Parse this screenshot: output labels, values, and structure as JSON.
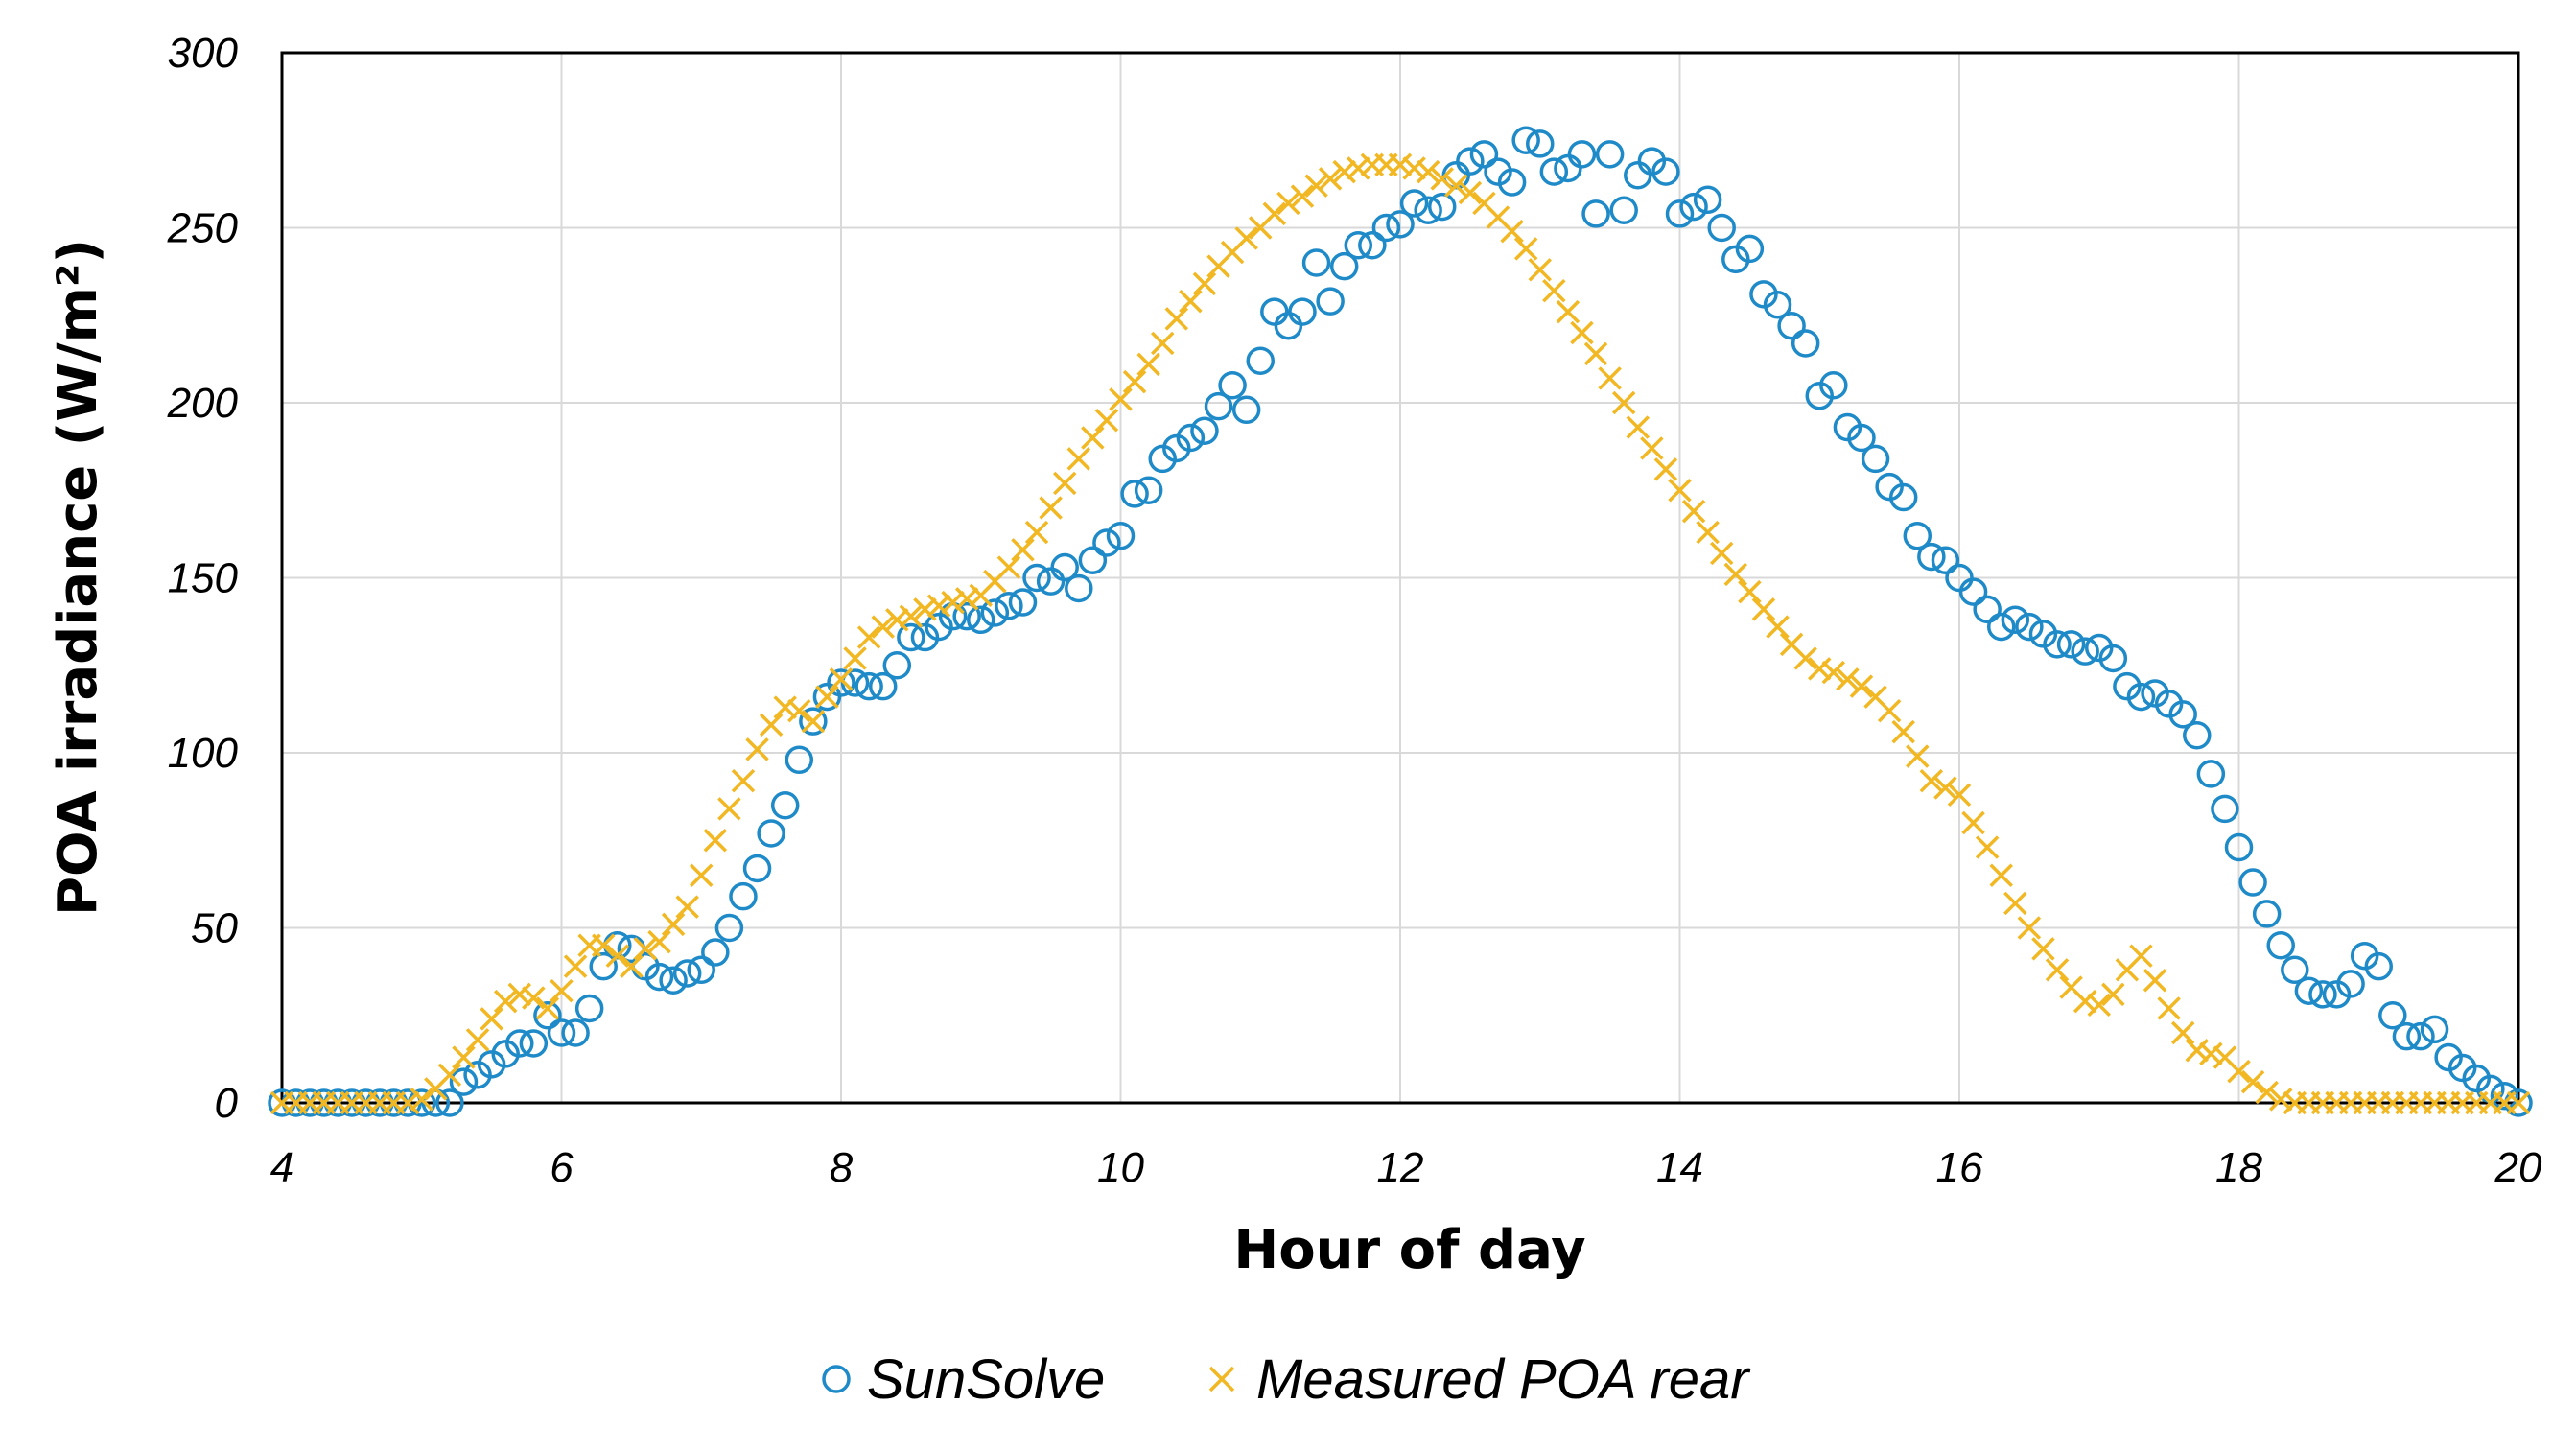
{
  "chart_data": {
    "type": "scatter",
    "xlabel": "Hour of day",
    "ylabel": "POA irradiance (W/m²)",
    "xlim": [
      4,
      20
    ],
    "ylim": [
      0,
      300
    ],
    "x_ticks": [
      4,
      6,
      8,
      10,
      12,
      14,
      16,
      18,
      20
    ],
    "y_ticks": [
      0,
      50,
      100,
      150,
      200,
      250,
      300
    ],
    "grid": true,
    "legend_position": "bottom",
    "series": [
      {
        "name": "SunSolve",
        "marker": "circle",
        "color": "#1f8ac8",
        "points": [
          [
            4.0,
            0
          ],
          [
            4.1,
            0
          ],
          [
            4.2,
            0
          ],
          [
            4.3,
            0
          ],
          [
            4.4,
            0
          ],
          [
            4.5,
            0
          ],
          [
            4.6,
            0
          ],
          [
            4.7,
            0
          ],
          [
            4.8,
            0
          ],
          [
            4.9,
            0
          ],
          [
            5.0,
            0
          ],
          [
            5.1,
            0
          ],
          [
            5.2,
            0
          ],
          [
            5.3,
            6
          ],
          [
            5.4,
            8
          ],
          [
            5.5,
            11
          ],
          [
            5.6,
            14
          ],
          [
            5.7,
            17
          ],
          [
            5.8,
            17
          ],
          [
            5.9,
            25
          ],
          [
            6.0,
            20
          ],
          [
            6.1,
            20
          ],
          [
            6.2,
            27
          ],
          [
            6.3,
            39
          ],
          [
            6.4,
            45
          ],
          [
            6.5,
            44
          ],
          [
            6.6,
            39
          ],
          [
            6.7,
            36
          ],
          [
            6.8,
            35
          ],
          [
            6.9,
            37
          ],
          [
            7.0,
            38
          ],
          [
            7.1,
            43
          ],
          [
            7.2,
            50
          ],
          [
            7.3,
            59
          ],
          [
            7.4,
            67
          ],
          [
            7.5,
            77
          ],
          [
            7.6,
            85
          ],
          [
            7.7,
            98
          ],
          [
            7.8,
            109
          ],
          [
            7.9,
            116
          ],
          [
            8.0,
            120
          ],
          [
            8.1,
            120
          ],
          [
            8.2,
            119
          ],
          [
            8.3,
            119
          ],
          [
            8.4,
            125
          ],
          [
            8.5,
            133
          ],
          [
            8.6,
            133
          ],
          [
            8.7,
            136
          ],
          [
            8.8,
            139
          ],
          [
            8.9,
            139
          ],
          [
            9.0,
            138
          ],
          [
            9.1,
            140
          ],
          [
            9.2,
            142
          ],
          [
            9.3,
            143
          ],
          [
            9.4,
            150
          ],
          [
            9.5,
            149
          ],
          [
            9.6,
            153
          ],
          [
            9.7,
            147
          ],
          [
            9.8,
            155
          ],
          [
            9.9,
            160
          ],
          [
            10.0,
            162
          ],
          [
            10.1,
            174
          ],
          [
            10.2,
            175
          ],
          [
            10.3,
            184
          ],
          [
            10.4,
            187
          ],
          [
            10.5,
            190
          ],
          [
            10.6,
            192
          ],
          [
            10.7,
            199
          ],
          [
            10.8,
            205
          ],
          [
            10.9,
            198
          ],
          [
            11.0,
            212
          ],
          [
            11.1,
            226
          ],
          [
            11.2,
            222
          ],
          [
            11.3,
            226
          ],
          [
            11.4,
            240
          ],
          [
            11.5,
            229
          ],
          [
            11.6,
            239
          ],
          [
            11.7,
            245
          ],
          [
            11.8,
            245
          ],
          [
            11.9,
            250
          ],
          [
            12.0,
            251
          ],
          [
            12.1,
            257
          ],
          [
            12.2,
            255
          ],
          [
            12.3,
            256
          ],
          [
            12.4,
            265
          ],
          [
            12.5,
            269
          ],
          [
            12.6,
            271
          ],
          [
            12.7,
            266
          ],
          [
            12.8,
            263
          ],
          [
            12.9,
            275
          ],
          [
            13.0,
            274
          ],
          [
            13.1,
            266
          ],
          [
            13.2,
            267
          ],
          [
            13.3,
            271
          ],
          [
            13.4,
            254
          ],
          [
            13.5,
            271
          ],
          [
            13.6,
            255
          ],
          [
            13.7,
            265
          ],
          [
            13.8,
            269
          ],
          [
            13.9,
            266
          ],
          [
            14.0,
            254
          ],
          [
            14.1,
            256
          ],
          [
            14.2,
            258
          ],
          [
            14.3,
            250
          ],
          [
            14.4,
            241
          ],
          [
            14.5,
            244
          ],
          [
            14.6,
            231
          ],
          [
            14.7,
            228
          ],
          [
            14.8,
            222
          ],
          [
            14.9,
            217
          ],
          [
            15.0,
            202
          ],
          [
            15.1,
            205
          ],
          [
            15.2,
            193
          ],
          [
            15.3,
            190
          ],
          [
            15.4,
            184
          ],
          [
            15.5,
            176
          ],
          [
            15.6,
            173
          ],
          [
            15.7,
            162
          ],
          [
            15.8,
            156
          ],
          [
            15.9,
            155
          ],
          [
            16.0,
            150
          ],
          [
            16.1,
            146
          ],
          [
            16.2,
            141
          ],
          [
            16.3,
            136
          ],
          [
            16.4,
            138
          ],
          [
            16.5,
            136
          ],
          [
            16.6,
            134
          ],
          [
            16.7,
            131
          ],
          [
            16.8,
            131
          ],
          [
            16.9,
            129
          ],
          [
            17.0,
            130
          ],
          [
            17.1,
            127
          ],
          [
            17.2,
            119
          ],
          [
            17.3,
            116
          ],
          [
            17.4,
            117
          ],
          [
            17.5,
            114
          ],
          [
            17.6,
            111
          ],
          [
            17.7,
            105
          ],
          [
            17.8,
            94
          ],
          [
            17.9,
            84
          ],
          [
            18.0,
            73
          ],
          [
            18.1,
            63
          ],
          [
            18.2,
            54
          ],
          [
            18.3,
            45
          ],
          [
            18.4,
            38
          ],
          [
            18.5,
            32
          ],
          [
            18.6,
            31
          ],
          [
            18.7,
            31
          ],
          [
            18.8,
            34
          ],
          [
            18.9,
            42
          ],
          [
            19.0,
            39
          ],
          [
            19.1,
            25
          ],
          [
            19.2,
            19
          ],
          [
            19.3,
            19
          ],
          [
            19.4,
            21
          ],
          [
            19.5,
            13
          ],
          [
            19.6,
            10
          ],
          [
            19.7,
            7
          ],
          [
            19.8,
            4
          ],
          [
            19.9,
            2
          ],
          [
            20.0,
            0
          ]
        ]
      },
      {
        "name": "Measured POA rear",
        "marker": "x",
        "color": "#f2b824",
        "points": [
          [
            4.0,
            0
          ],
          [
            4.1,
            0
          ],
          [
            4.2,
            0
          ],
          [
            4.3,
            0
          ],
          [
            4.4,
            0
          ],
          [
            4.5,
            0
          ],
          [
            4.6,
            0
          ],
          [
            4.7,
            0
          ],
          [
            4.8,
            0
          ],
          [
            4.9,
            0
          ],
          [
            5.0,
            1
          ],
          [
            5.1,
            4
          ],
          [
            5.2,
            8
          ],
          [
            5.3,
            13
          ],
          [
            5.4,
            18
          ],
          [
            5.5,
            24
          ],
          [
            5.6,
            29
          ],
          [
            5.7,
            31
          ],
          [
            5.8,
            30
          ],
          [
            5.9,
            27
          ],
          [
            6.0,
            32
          ],
          [
            6.1,
            39
          ],
          [
            6.2,
            45
          ],
          [
            6.3,
            45
          ],
          [
            6.4,
            42
          ],
          [
            6.5,
            39
          ],
          [
            6.6,
            44
          ],
          [
            6.7,
            46
          ],
          [
            6.8,
            51
          ],
          [
            6.9,
            56
          ],
          [
            7.0,
            65
          ],
          [
            7.1,
            75
          ],
          [
            7.2,
            84
          ],
          [
            7.3,
            92
          ],
          [
            7.4,
            101
          ],
          [
            7.5,
            108
          ],
          [
            7.6,
            113
          ],
          [
            7.7,
            112
          ],
          [
            7.8,
            109
          ],
          [
            7.9,
            116
          ],
          [
            8.0,
            121
          ],
          [
            8.1,
            127
          ],
          [
            8.2,
            133
          ],
          [
            8.3,
            136
          ],
          [
            8.4,
            138
          ],
          [
            8.5,
            139
          ],
          [
            8.6,
            141
          ],
          [
            8.7,
            142
          ],
          [
            8.8,
            143
          ],
          [
            8.9,
            144
          ],
          [
            9.0,
            145
          ],
          [
            9.1,
            149
          ],
          [
            9.2,
            153
          ],
          [
            9.3,
            158
          ],
          [
            9.4,
            163
          ],
          [
            9.5,
            170
          ],
          [
            9.6,
            177
          ],
          [
            9.7,
            184
          ],
          [
            9.8,
            190
          ],
          [
            9.9,
            195
          ],
          [
            10.0,
            201
          ],
          [
            10.1,
            206
          ],
          [
            10.2,
            211
          ],
          [
            10.3,
            217
          ],
          [
            10.4,
            224
          ],
          [
            10.5,
            229
          ],
          [
            10.6,
            234
          ],
          [
            10.7,
            239
          ],
          [
            10.8,
            243
          ],
          [
            10.9,
            247
          ],
          [
            11.0,
            250
          ],
          [
            11.1,
            254
          ],
          [
            11.2,
            257
          ],
          [
            11.3,
            259
          ],
          [
            11.4,
            262
          ],
          [
            11.5,
            264
          ],
          [
            11.6,
            266
          ],
          [
            11.7,
            267
          ],
          [
            11.8,
            268
          ],
          [
            11.9,
            268
          ],
          [
            12.0,
            268
          ],
          [
            12.1,
            267
          ],
          [
            12.2,
            266
          ],
          [
            12.3,
            264
          ],
          [
            12.4,
            262
          ],
          [
            12.5,
            260
          ],
          [
            12.6,
            257
          ],
          [
            12.7,
            253
          ],
          [
            12.8,
            249
          ],
          [
            12.9,
            244
          ],
          [
            13.0,
            238
          ],
          [
            13.1,
            232
          ],
          [
            13.2,
            226
          ],
          [
            13.3,
            220
          ],
          [
            13.4,
            214
          ],
          [
            13.5,
            207
          ],
          [
            13.6,
            200
          ],
          [
            13.7,
            193
          ],
          [
            13.8,
            187
          ],
          [
            13.9,
            181
          ],
          [
            14.0,
            175
          ],
          [
            14.1,
            169
          ],
          [
            14.2,
            163
          ],
          [
            14.3,
            157
          ],
          [
            14.4,
            151
          ],
          [
            14.5,
            146
          ],
          [
            14.6,
            141
          ],
          [
            14.7,
            136
          ],
          [
            14.8,
            131
          ],
          [
            14.9,
            127
          ],
          [
            15.0,
            124
          ],
          [
            15.1,
            123
          ],
          [
            15.2,
            121
          ],
          [
            15.3,
            119
          ],
          [
            15.4,
            116
          ],
          [
            15.5,
            112
          ],
          [
            15.6,
            106
          ],
          [
            15.7,
            99
          ],
          [
            15.8,
            92
          ],
          [
            15.9,
            90
          ],
          [
            16.0,
            88
          ],
          [
            16.1,
            80
          ],
          [
            16.2,
            73
          ],
          [
            16.3,
            65
          ],
          [
            16.4,
            57
          ],
          [
            16.5,
            50
          ],
          [
            16.6,
            44
          ],
          [
            16.7,
            38
          ],
          [
            16.8,
            33
          ],
          [
            16.9,
            29
          ],
          [
            17.0,
            28
          ],
          [
            17.1,
            31
          ],
          [
            17.2,
            38
          ],
          [
            17.3,
            42
          ],
          [
            17.4,
            35
          ],
          [
            17.5,
            27
          ],
          [
            17.6,
            20
          ],
          [
            17.7,
            15
          ],
          [
            17.8,
            14
          ],
          [
            17.9,
            13
          ],
          [
            18.0,
            9
          ],
          [
            18.1,
            6
          ],
          [
            18.2,
            3
          ],
          [
            18.3,
            1
          ],
          [
            18.4,
            0
          ],
          [
            18.5,
            0
          ],
          [
            18.6,
            0
          ],
          [
            18.7,
            0
          ],
          [
            18.8,
            0
          ],
          [
            18.9,
            0
          ],
          [
            19.0,
            0
          ],
          [
            19.1,
            0
          ],
          [
            19.2,
            0
          ],
          [
            19.3,
            0
          ],
          [
            19.4,
            0
          ],
          [
            19.5,
            0
          ],
          [
            19.6,
            0
          ],
          [
            19.7,
            0
          ],
          [
            19.8,
            0
          ],
          [
            19.9,
            0
          ],
          [
            20.0,
            0
          ]
        ]
      }
    ]
  }
}
